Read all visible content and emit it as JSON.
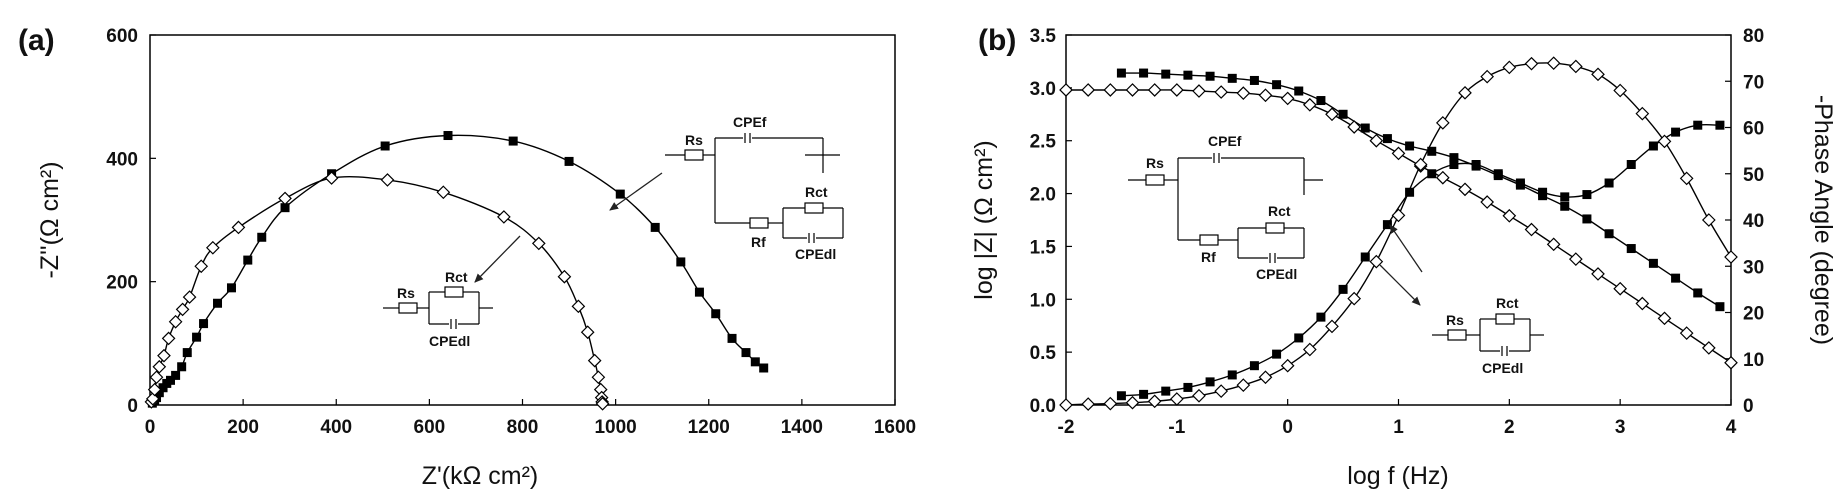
{
  "chart_data": [
    {
      "panel": "(a)",
      "type": "scatter",
      "xlabel": "Z'(kΩ cm²)",
      "ylabel": "-Z''(Ω cm²)",
      "xlim": [
        0,
        1600
      ],
      "ylim": [
        0,
        600
      ],
      "xticks": [
        0,
        200,
        400,
        600,
        800,
        1000,
        1200,
        1400,
        1600
      ],
      "yticks": [
        0,
        200,
        400,
        600
      ],
      "series": [
        {
          "marker": "filled-square",
          "fit_line": true,
          "points": [
            [
              5,
              3
            ],
            [
              10,
              7
            ],
            [
              14,
              12
            ],
            [
              20,
              20
            ],
            [
              28,
              28
            ],
            [
              36,
              35
            ],
            [
              44,
              40
            ],
            [
              55,
              48
            ],
            [
              68,
              62
            ],
            [
              80,
              85
            ],
            [
              100,
              110
            ],
            [
              115,
              132
            ],
            [
              145,
              165
            ],
            [
              175,
              190
            ],
            [
              210,
              235
            ],
            [
              240,
              272
            ],
            [
              290,
              320
            ],
            [
              390,
              375
            ],
            [
              505,
              420
            ],
            [
              640,
              437
            ],
            [
              780,
              428
            ],
            [
              900,
              395
            ],
            [
              1010,
              342
            ],
            [
              1085,
              288
            ],
            [
              1140,
              232
            ],
            [
              1180,
              183
            ],
            [
              1215,
              148
            ],
            [
              1250,
              108
            ],
            [
              1280,
              85
            ],
            [
              1300,
              70
            ],
            [
              1318,
              60
            ]
          ]
        },
        {
          "marker": "open-diamond",
          "fit_line": true,
          "points": [
            [
              3,
              5
            ],
            [
              6,
              10
            ],
            [
              10,
              25
            ],
            [
              14,
              45
            ],
            [
              20,
              62
            ],
            [
              30,
              80
            ],
            [
              40,
              108
            ],
            [
              55,
              135
            ],
            [
              70,
              155
            ],
            [
              85,
              175
            ],
            [
              110,
              225
            ],
            [
              135,
              255
            ],
            [
              190,
              288
            ],
            [
              290,
              335
            ],
            [
              390,
              368
            ],
            [
              510,
              365
            ],
            [
              630,
              345
            ],
            [
              760,
              305
            ],
            [
              835,
              262
            ],
            [
              890,
              208
            ],
            [
              920,
              160
            ],
            [
              940,
              118
            ],
            [
              955,
              72
            ],
            [
              963,
              45
            ],
            [
              968,
              25
            ],
            [
              970,
              12
            ],
            [
              971,
              5
            ],
            [
              972,
              2
            ]
          ]
        }
      ],
      "insets": [
        {
          "labels": [
            "Rs",
            "CPEf",
            "Rct",
            "Rf",
            "CPEdl"
          ]
        },
        {
          "labels": [
            "Rct",
            "Rs",
            "CPEdl"
          ]
        }
      ]
    },
    {
      "panel": "(b)",
      "type": "scatter",
      "xlabel": "log f (Hz)",
      "ylabel": "log |Z| (Ω cm²)",
      "y2label": "-Phase Angle (degree)",
      "xlim": [
        -2,
        4
      ],
      "ylim": [
        0,
        3.5
      ],
      "y2lim": [
        0,
        80
      ],
      "xticks": [
        -2,
        -1,
        0,
        1,
        2,
        3,
        4
      ],
      "yticks": [
        0.0,
        0.5,
        1.0,
        1.5,
        2.0,
        2.5,
        3.0,
        3.5
      ],
      "y2ticks": [
        0,
        10,
        20,
        30,
        40,
        50,
        60,
        70,
        80
      ],
      "series": [
        {
          "marker": "filled-square",
          "axis": "left",
          "fit_line": true,
          "x": [
            -1.5,
            -1.3,
            -1.1,
            -0.9,
            -0.7,
            -0.5,
            -0.3,
            -0.1,
            0.1,
            0.3,
            0.5,
            0.7,
            0.9,
            1.1,
            1.3,
            1.5,
            1.7,
            1.9,
            2.1,
            2.3,
            2.5,
            2.7,
            2.9,
            3.1,
            3.3,
            3.5,
            3.7,
            3.9
          ],
          "y": [
            3.14,
            3.14,
            3.13,
            3.12,
            3.11,
            3.09,
            3.07,
            3.03,
            2.97,
            2.88,
            2.75,
            2.62,
            2.52,
            2.45,
            2.4,
            2.34,
            2.26,
            2.17,
            2.08,
            1.98,
            1.88,
            1.76,
            1.62,
            1.48,
            1.34,
            1.2,
            1.06,
            0.93
          ]
        },
        {
          "marker": "filled-square",
          "axis": "right",
          "fit_line": true,
          "x": [
            -1.5,
            -1.3,
            -1.1,
            -0.9,
            -0.7,
            -0.5,
            -0.3,
            -0.1,
            0.1,
            0.3,
            0.5,
            0.7,
            0.9,
            1.1,
            1.3,
            1.5,
            1.7,
            1.9,
            2.1,
            2.3,
            2.5,
            2.7,
            2.9,
            3.1,
            3.3,
            3.5,
            3.7,
            3.9
          ],
          "y": [
            2,
            2.3,
            3,
            3.8,
            5,
            6.5,
            8.5,
            11,
            14.5,
            19,
            25,
            32,
            39,
            46,
            50,
            52,
            52,
            50,
            48,
            46,
            45,
            45.5,
            48,
            52,
            56,
            59,
            60.5,
            60.5
          ]
        },
        {
          "marker": "open-diamond",
          "axis": "left",
          "fit_line": true,
          "x": [
            -2.0,
            -1.8,
            -1.6,
            -1.4,
            -1.2,
            -1.0,
            -0.8,
            -0.6,
            -0.4,
            -0.2,
            0.0,
            0.2,
            0.4,
            0.6,
            0.8,
            1.0,
            1.2,
            1.4,
            1.6,
            1.8,
            2.0,
            2.2,
            2.4,
            2.6,
            2.8,
            3.0,
            3.2,
            3.4,
            3.6,
            3.8,
            4.0
          ],
          "y": [
            2.98,
            2.98,
            2.98,
            2.98,
            2.98,
            2.98,
            2.97,
            2.96,
            2.95,
            2.93,
            2.9,
            2.84,
            2.75,
            2.63,
            2.5,
            2.38,
            2.26,
            2.15,
            2.04,
            1.92,
            1.79,
            1.66,
            1.52,
            1.38,
            1.24,
            1.1,
            0.96,
            0.82,
            0.68,
            0.54,
            0.4
          ]
        },
        {
          "marker": "open-diamond",
          "axis": "right",
          "fit_line": true,
          "x": [
            -2.0,
            -1.8,
            -1.6,
            -1.4,
            -1.2,
            -1.0,
            -0.8,
            -0.6,
            -0.4,
            -0.2,
            0.0,
            0.2,
            0.4,
            0.6,
            0.8,
            1.0,
            1.2,
            1.4,
            1.6,
            1.8,
            2.0,
            2.2,
            2.4,
            2.6,
            2.8,
            3.0,
            3.2,
            3.4,
            3.6,
            3.8,
            4.0
          ],
          "y": [
            0,
            0.2,
            0.3,
            0.5,
            0.8,
            1.3,
            2,
            3,
            4.3,
            6,
            8.5,
            12,
            17,
            23,
            31,
            41,
            52,
            61,
            67.5,
            71,
            73,
            73.8,
            73.9,
            73.2,
            71.5,
            68,
            63,
            57,
            49,
            40,
            32
          ]
        }
      ],
      "insets": [
        {
          "labels": [
            "Rs",
            "CPEf",
            "Rct",
            "Rf",
            "CPEdl"
          ]
        },
        {
          "labels": [
            "Rct",
            "Rs",
            "CPEdl"
          ]
        }
      ]
    }
  ]
}
